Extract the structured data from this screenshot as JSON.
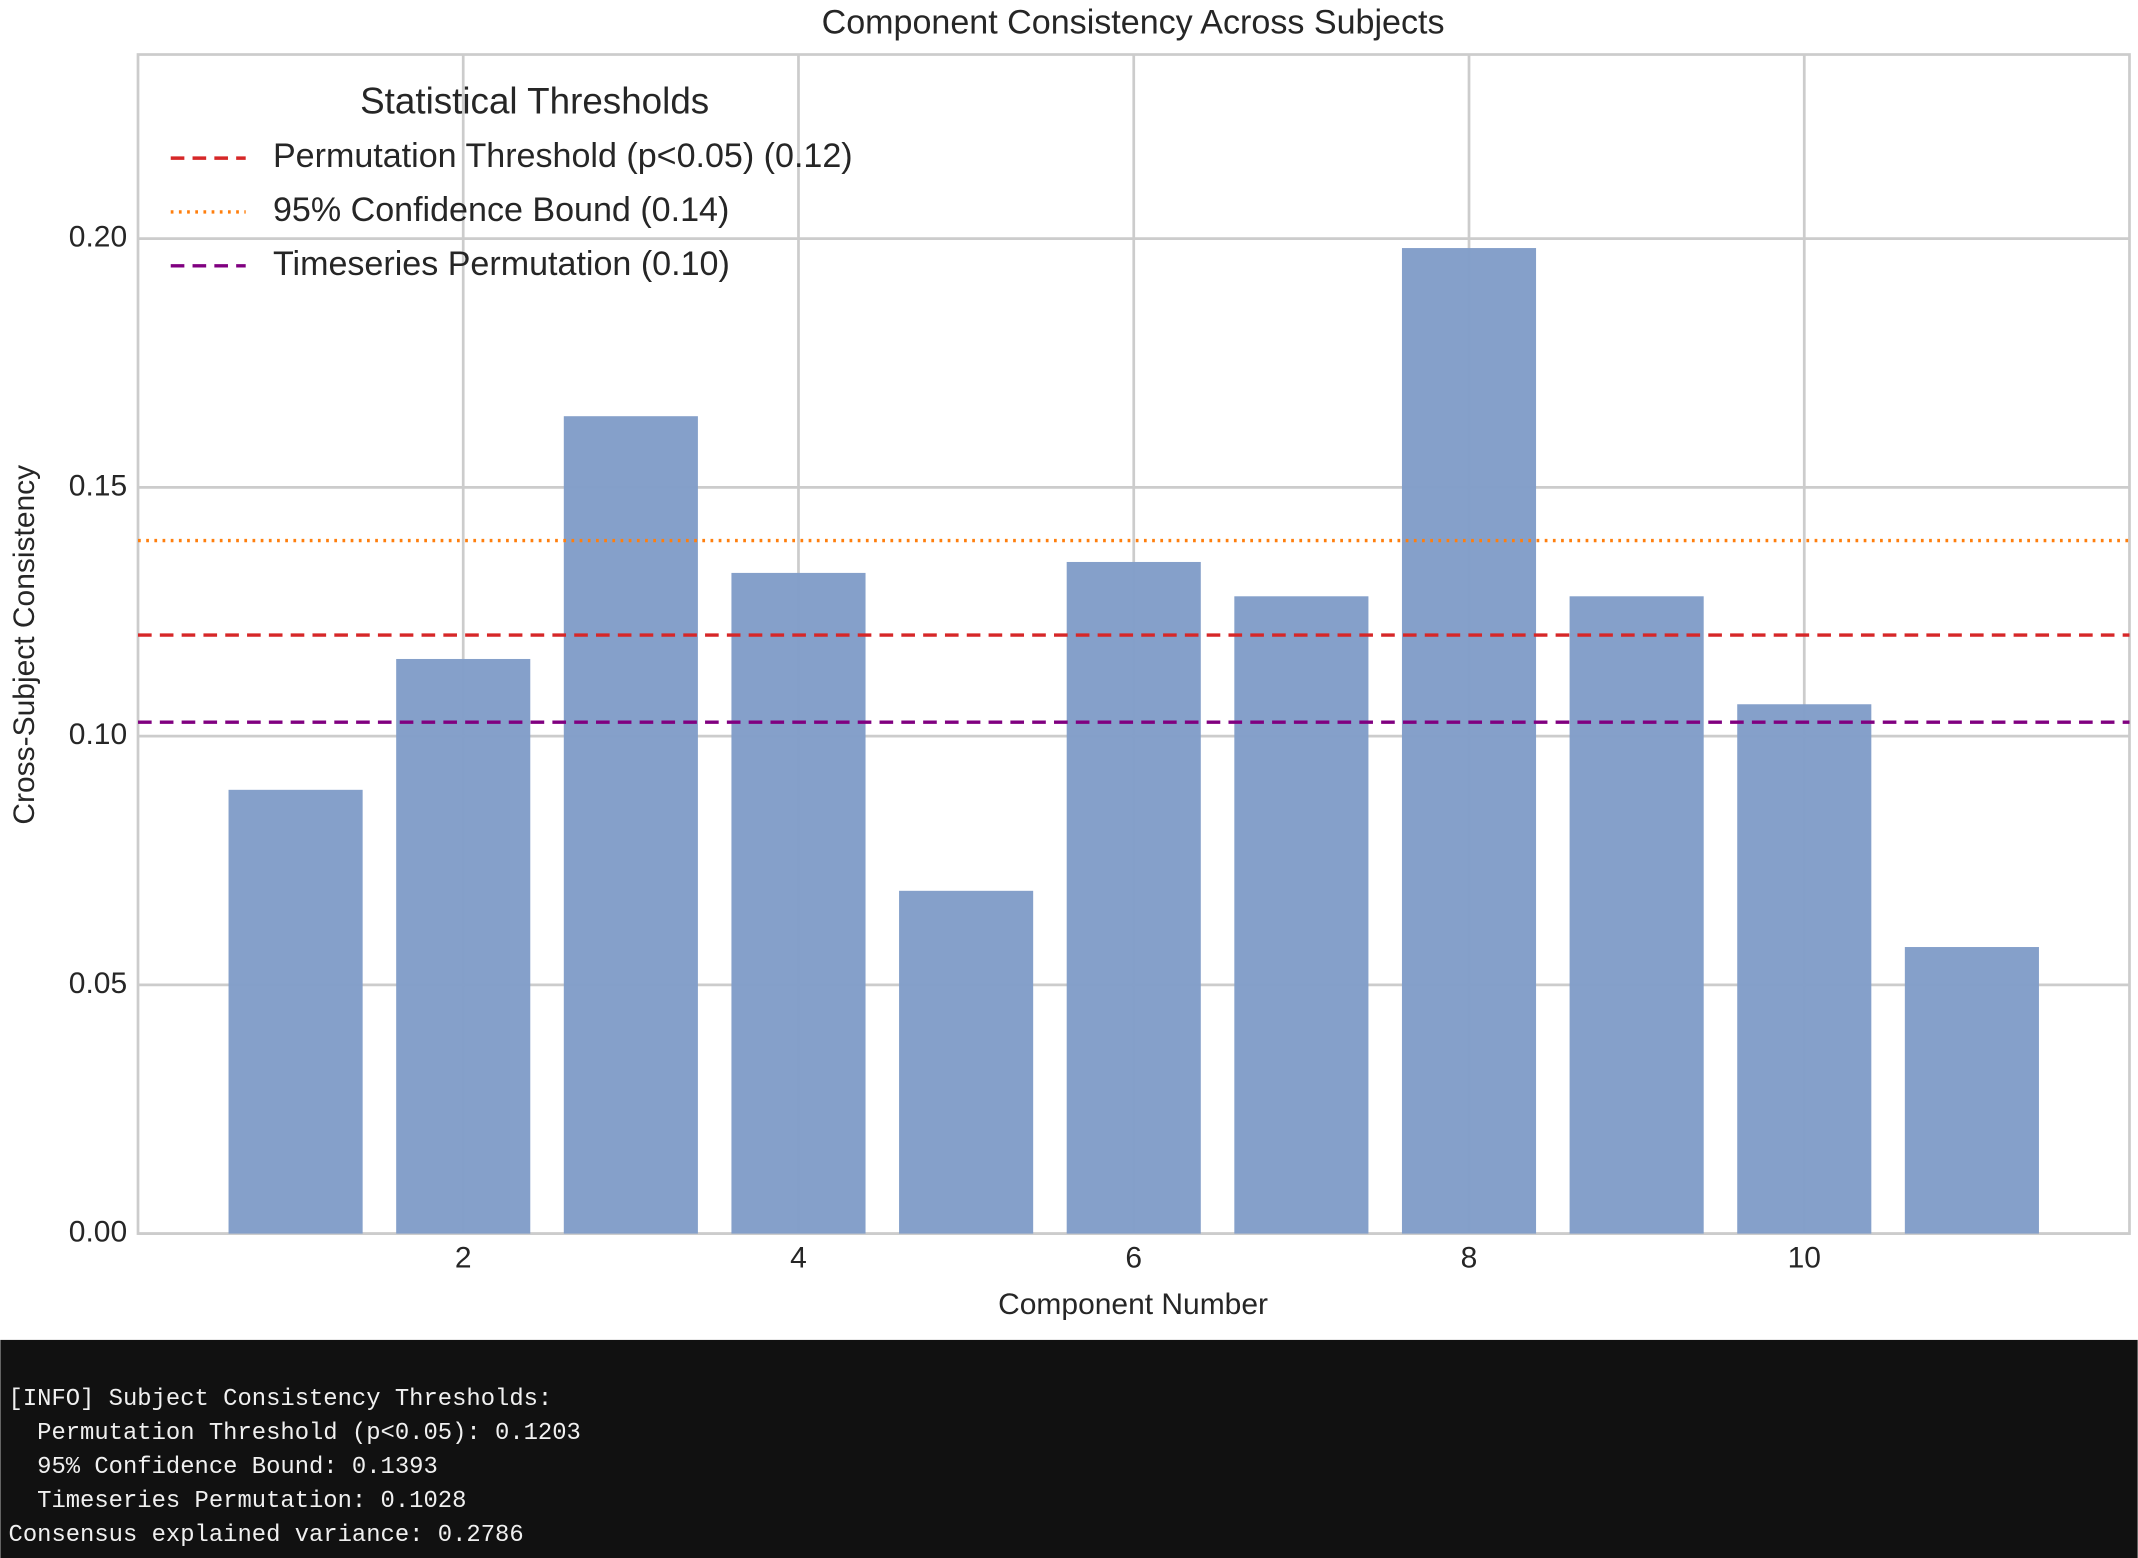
{
  "chart_data": {
    "type": "bar",
    "title": "Component Consistency Across Subjects",
    "x_label": "Component Number",
    "y_label": "Cross-Subject Consistency",
    "x": [
      1,
      2,
      3,
      4,
      5,
      6,
      7,
      8,
      9,
      10,
      11
    ],
    "values": [
      0.0892,
      0.1155,
      0.1643,
      0.1328,
      0.0689,
      0.135,
      0.1281,
      0.1981,
      0.1281,
      0.1064,
      0.0576
    ],
    "color": "#819dc8",
    "xlim": [
      0.06,
      11.94
    ],
    "ylim": [
      0,
      0.237
    ],
    "xticks": [
      2,
      4,
      6,
      8,
      10
    ],
    "yticks": [
      {
        "value": 0,
        "label": "0.00"
      },
      {
        "value": 0.05,
        "label": "0.05"
      },
      {
        "value": 0.1,
        "label": "0.10"
      },
      {
        "value": 0.15,
        "label": "0.15"
      },
      {
        "value": 0.2,
        "label": "0.20"
      }
    ],
    "grid": true,
    "legend_title": "Statistical Thresholds",
    "legend": "upper left",
    "hlines": [
      {
        "name": "Permutation Threshold (p<0.05) (0.12)",
        "value": 0.1203,
        "color": "#d62728",
        "style": "dashed"
      },
      {
        "name": "95% Confidence Bound (0.14)",
        "value": 0.1393,
        "color": "#ff7f0e",
        "style": "dotted"
      },
      {
        "name": "Timeseries Permutation (0.10)",
        "value": 0.1028,
        "color": "#800080",
        "style": "dashed"
      }
    ]
  },
  "console": {
    "lines": [
      "[INFO] Subject Consistency Thresholds:",
      "  Permutation Threshold (p<0.05): 0.1203",
      "  95% Confidence Bound: 0.1393",
      "  Timeseries Permutation: 0.1028",
      "Consensus explained variance: 0.2786"
    ]
  }
}
